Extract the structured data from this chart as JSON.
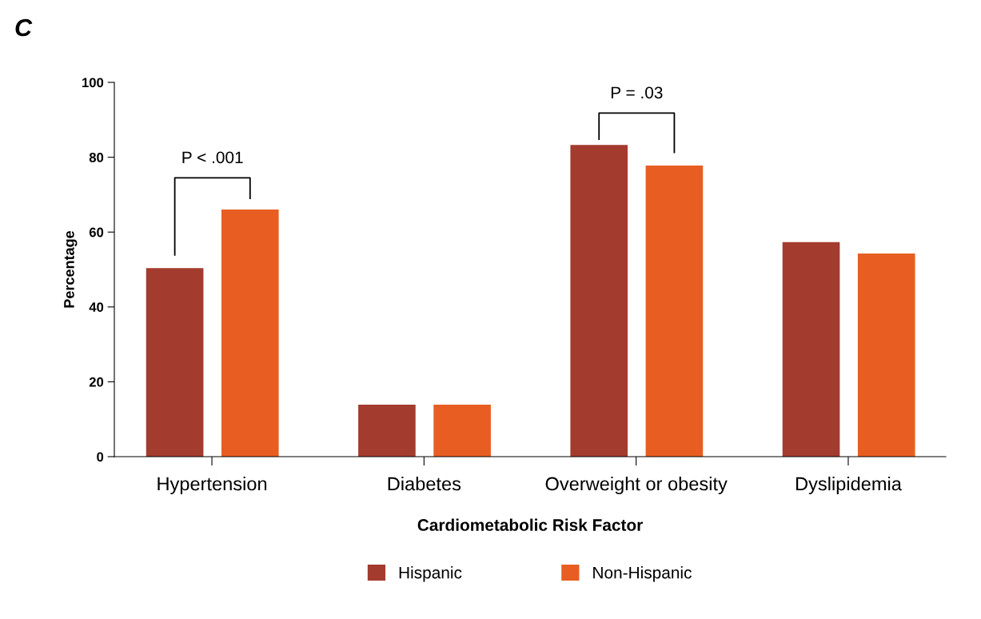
{
  "chart_data": {
    "type": "bar",
    "xlabel": "Cardiometabolic Risk Factor",
    "ylabel": "Percentage",
    "categories": [
      "Hypertension",
      "Diabetes",
      "Overweight or obesity",
      "Dyslipidemia"
    ],
    "series": [
      {
        "name": "Hispanic",
        "color": "#a33b2e",
        "values": [
          50.4,
          13.9,
          83.3,
          57.3
        ]
      },
      {
        "name": "Non-Hispanic",
        "color": "#e85e22",
        "values": [
          66.0,
          13.9,
          77.8,
          54.3
        ]
      }
    ],
    "ylim": [
      0,
      100
    ],
    "yticks": [
      0,
      20,
      40,
      60,
      80,
      100
    ],
    "grid": false,
    "legend": "bottom",
    "annotations": [
      "C",
      "P < .001",
      "P = .03"
    ]
  }
}
